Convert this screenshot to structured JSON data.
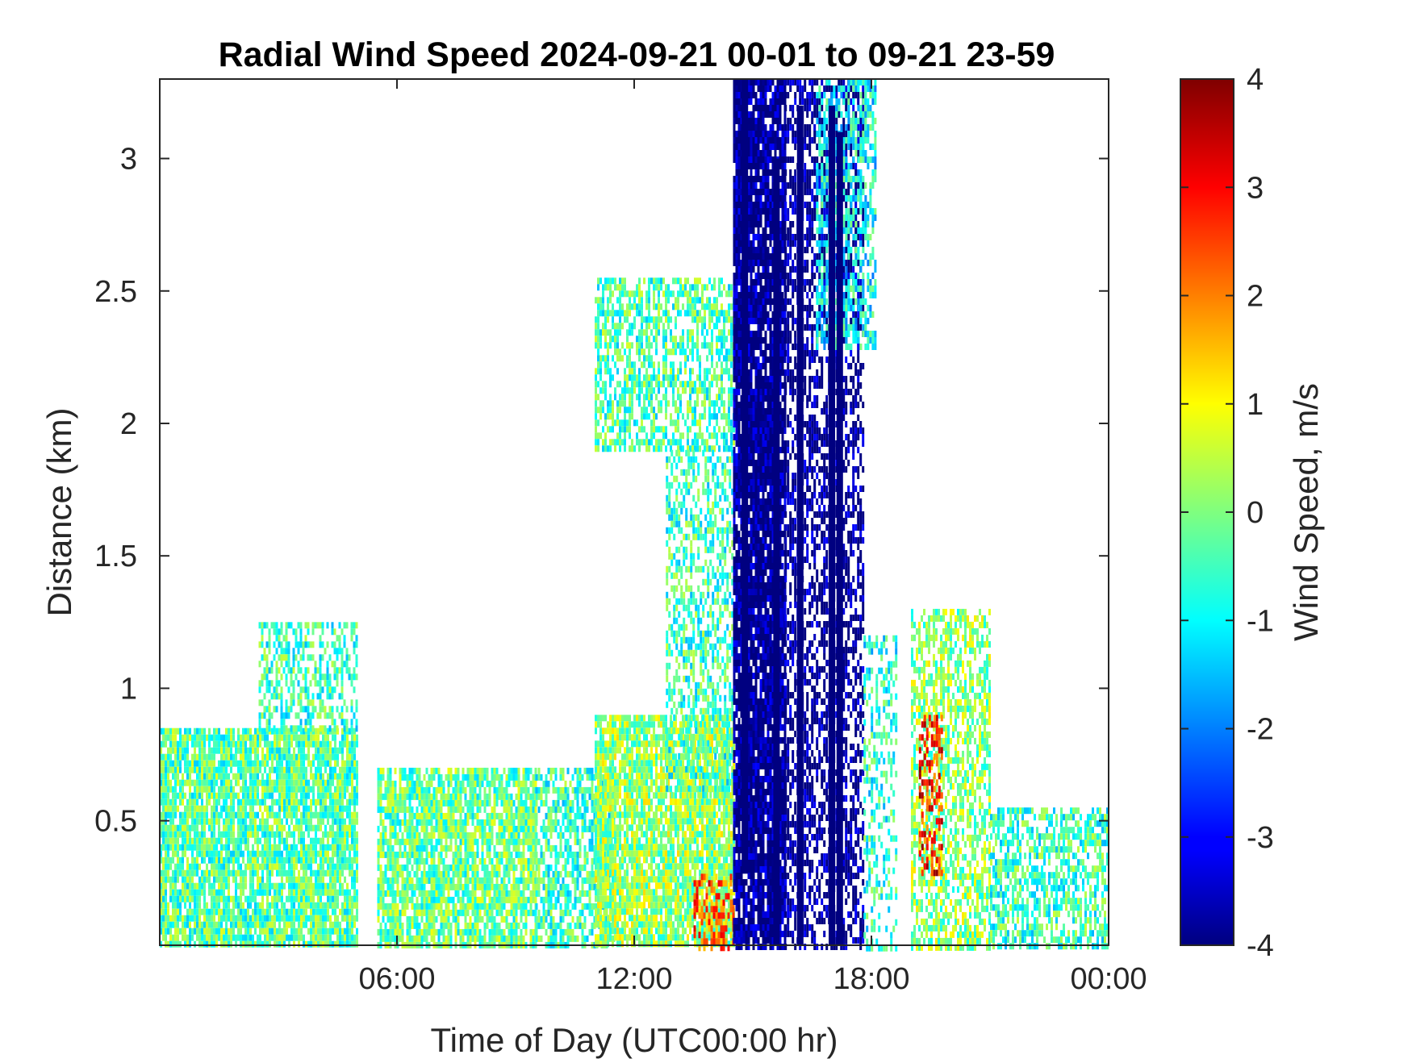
{
  "chart_data": {
    "type": "heatmap",
    "title": "Radial Wind Speed 2024-09-21 00-01 to 09-21 23-59",
    "xlabel": "Time of Day (UTC00:00 hr)",
    "ylabel": "Distance (km)",
    "colorbar_label": "Wind Speed, m/s",
    "x_unit": "hours",
    "xlim": [
      0,
      24
    ],
    "ylim": [
      0.03,
      3.3
    ],
    "clim": [
      -4,
      4
    ],
    "colormap": "jet",
    "x_ticks": [
      6,
      12,
      18,
      24
    ],
    "x_tick_labels": [
      "06:00",
      "12:00",
      "18:00",
      "00:00"
    ],
    "y_ticks": [
      0.5,
      1,
      1.5,
      2,
      2.5,
      3
    ],
    "y_tick_labels": [
      "0.5",
      "1",
      "1.5",
      "2",
      "2.5",
      "3"
    ],
    "colorbar_ticks": [
      4,
      3,
      2,
      1,
      0,
      -1,
      -2,
      -3,
      -4
    ],
    "colorbar_tick_labels": [
      "4",
      "3",
      "2",
      "1",
      "0",
      "-1",
      "-2",
      "-3",
      "-4"
    ],
    "grid": false,
    "background": "#ffffff",
    "regions": [
      {
        "t": [
          0.0,
          5.0
        ],
        "z": [
          0.03,
          0.85
        ],
        "v": -0.3,
        "density": 0.85
      },
      {
        "t": [
          2.5,
          5.0
        ],
        "z": [
          0.85,
          1.25
        ],
        "v": -0.5,
        "density": 0.55
      },
      {
        "t": [
          5.5,
          9.5
        ],
        "z": [
          0.03,
          0.7
        ],
        "v": -0.2,
        "density": 0.8
      },
      {
        "t": [
          9.5,
          11.5
        ],
        "z": [
          0.03,
          0.7
        ],
        "v": -0.5,
        "density": 0.65
      },
      {
        "t": [
          11.0,
          14.5
        ],
        "z": [
          0.03,
          0.9
        ],
        "v": 0.2,
        "density": 0.85
      },
      {
        "t": [
          13.5,
          14.5
        ],
        "z": [
          0.03,
          0.3
        ],
        "v": 2.3,
        "density": 0.55
      },
      {
        "t": [
          11.0,
          14.5
        ],
        "z": [
          1.9,
          2.55
        ],
        "v": -0.4,
        "density": 0.6
      },
      {
        "t": [
          12.8,
          14.5
        ],
        "z": [
          0.6,
          1.9
        ],
        "v": -0.5,
        "density": 0.5
      },
      {
        "t": [
          14.5,
          15.8
        ],
        "z": [
          0.03,
          3.3
        ],
        "v": -4.0,
        "density": 0.9
      },
      {
        "t": [
          15.8,
          17.8
        ],
        "z": [
          0.03,
          3.3
        ],
        "v": -4.0,
        "density": 0.55
      },
      {
        "t": [
          16.6,
          18.1
        ],
        "z": [
          2.3,
          3.3
        ],
        "v": -1.0,
        "density": 0.55
      },
      {
        "t": [
          17.8,
          18.6
        ],
        "z": [
          0.03,
          1.2
        ],
        "v": -0.7,
        "density": 0.4
      },
      {
        "t": [
          19.0,
          21.0
        ],
        "z": [
          0.03,
          1.3
        ],
        "v": 0.1,
        "density": 0.6
      },
      {
        "t": [
          19.2,
          19.8
        ],
        "z": [
          0.3,
          0.9
        ],
        "v": 2.8,
        "density": 0.45
      },
      {
        "t": [
          21.0,
          24.0
        ],
        "z": [
          0.03,
          0.55
        ],
        "v": -0.5,
        "density": 0.6
      }
    ],
    "lines": [
      {
        "t": 14.8,
        "z": [
          0.3,
          3.3
        ],
        "v": -4.0
      },
      {
        "t": 15.6,
        "z": [
          0.03,
          3.0
        ],
        "v": -4.0
      },
      {
        "t": 16.2,
        "z": [
          0.03,
          3.2
        ],
        "v": -4.0
      },
      {
        "t": 17.0,
        "z": [
          0.03,
          3.2
        ],
        "v": -4.0
      },
      {
        "t": 17.2,
        "z": [
          0.03,
          3.1
        ],
        "v": -4.0
      }
    ]
  }
}
